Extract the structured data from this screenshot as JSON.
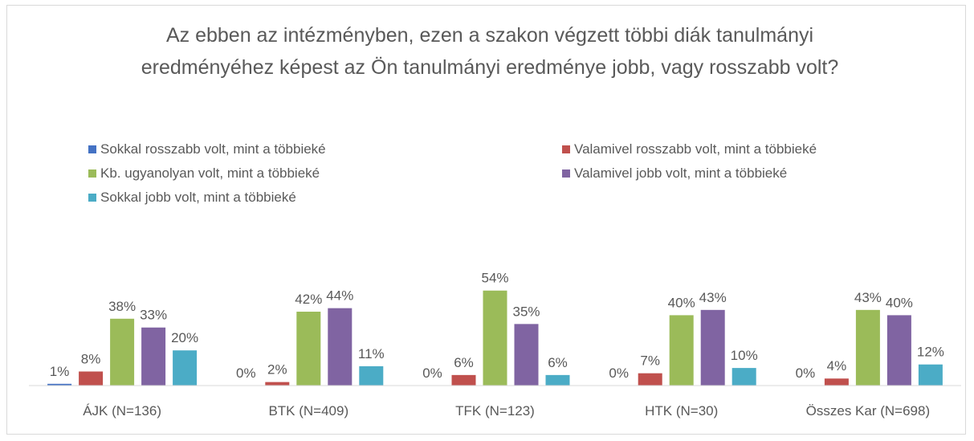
{
  "chart_data": {
    "type": "bar",
    "title": "Az ebben az intézményben, ezen a szakon végzett többi diák tanulmányi eredményéhez képest az Ön tanulmányi eredménye jobb, vagy rosszabb volt?",
    "categories": [
      "ÁJK (N=136)",
      "BTK (N=409)",
      "TFK (N=123)",
      "HTK (N=30)",
      "Összes Kar (N=698)"
    ],
    "legend": "top",
    "series": [
      {
        "name": "Sokkal rosszabb volt, mint a többieké",
        "color": "#4472c4",
        "values": [
          1,
          0,
          0,
          0,
          0
        ],
        "value_labels": [
          "1%",
          "0%",
          "0%",
          "0%",
          "0%"
        ]
      },
      {
        "name": "Valamivel rosszabb volt, mint a többieké",
        "color": "#c0504d",
        "values": [
          8,
          2,
          6,
          7,
          4
        ],
        "value_labels": [
          "8%",
          "2%",
          "6%",
          "7%",
          "4%"
        ]
      },
      {
        "name": "Kb. ugyanolyan volt, mint a többieké",
        "color": "#9bbb59",
        "values": [
          38,
          42,
          54,
          40,
          43
        ],
        "value_labels": [
          "38%",
          "42%",
          "54%",
          "40%",
          "43%"
        ]
      },
      {
        "name": "Valamivel jobb volt, mint a többieké",
        "color": "#8064a2",
        "values": [
          33,
          44,
          35,
          43,
          40
        ],
        "value_labels": [
          "33%",
          "44%",
          "35%",
          "43%",
          "40%"
        ]
      },
      {
        "name": "Sokkal jobb volt, mint a többieké",
        "color": "#4bacc6",
        "values": [
          20,
          11,
          6,
          10,
          12
        ],
        "value_labels": [
          "20%",
          "11%",
          "6%",
          "10%",
          "12%"
        ]
      }
    ]
  }
}
